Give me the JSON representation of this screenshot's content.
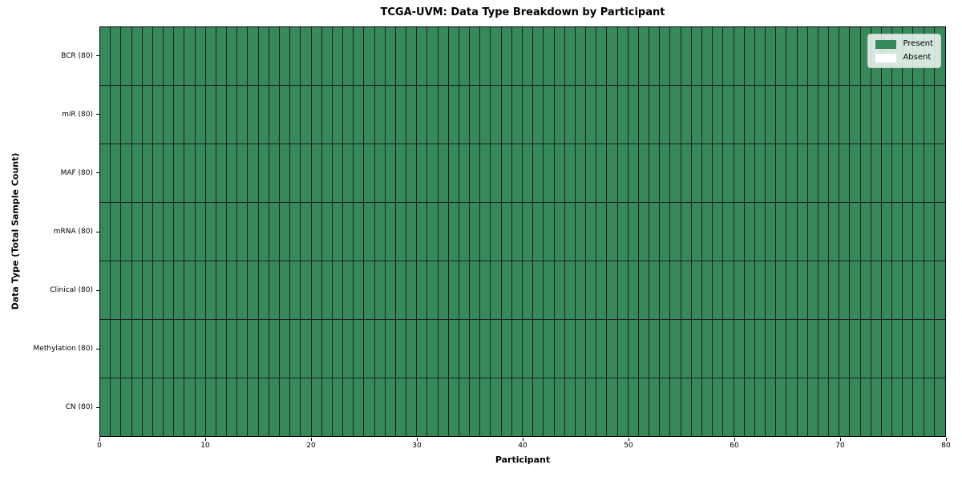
{
  "chart_data": {
    "type": "heatmap",
    "title": "TCGA-UVM: Data Type Breakdown by Participant",
    "xlabel": "Participant",
    "ylabel": "Data Type (Total Sample Count)",
    "x_range": [
      0,
      80
    ],
    "x_ticks": [
      0,
      10,
      20,
      30,
      40,
      50,
      60,
      70,
      80
    ],
    "n_participants": 80,
    "cell_value_map": {
      "present": 1,
      "absent": 0
    },
    "rows": [
      {
        "label": "BCR (80)",
        "total_samples": 80,
        "present_count": 80,
        "absent_count": 0
      },
      {
        "label": "miR (80)",
        "total_samples": 80,
        "present_count": 80,
        "absent_count": 0
      },
      {
        "label": "MAF (80)",
        "total_samples": 80,
        "present_count": 80,
        "absent_count": 0
      },
      {
        "label": "mRNA (80)",
        "total_samples": 80,
        "present_count": 80,
        "absent_count": 0
      },
      {
        "label": "Clinical (80)",
        "total_samples": 80,
        "present_count": 80,
        "absent_count": 0
      },
      {
        "label": "Methylation (80)",
        "total_samples": 80,
        "present_count": 80,
        "absent_count": 0
      },
      {
        "label": "CN (80)",
        "total_samples": 80,
        "present_count": 80,
        "absent_count": 0
      }
    ],
    "legend": [
      {
        "label": "Present",
        "color": "#35895b"
      },
      {
        "label": "Absent",
        "color": "#ffffff"
      }
    ],
    "legend_position": "upper right",
    "grid": true,
    "colors": {
      "present": "#35895b",
      "absent": "#ffffff",
      "grid_line": "#1f1f1f",
      "axis": "#000000",
      "legend_border": "#cccccc",
      "background": "#ffffff"
    }
  }
}
